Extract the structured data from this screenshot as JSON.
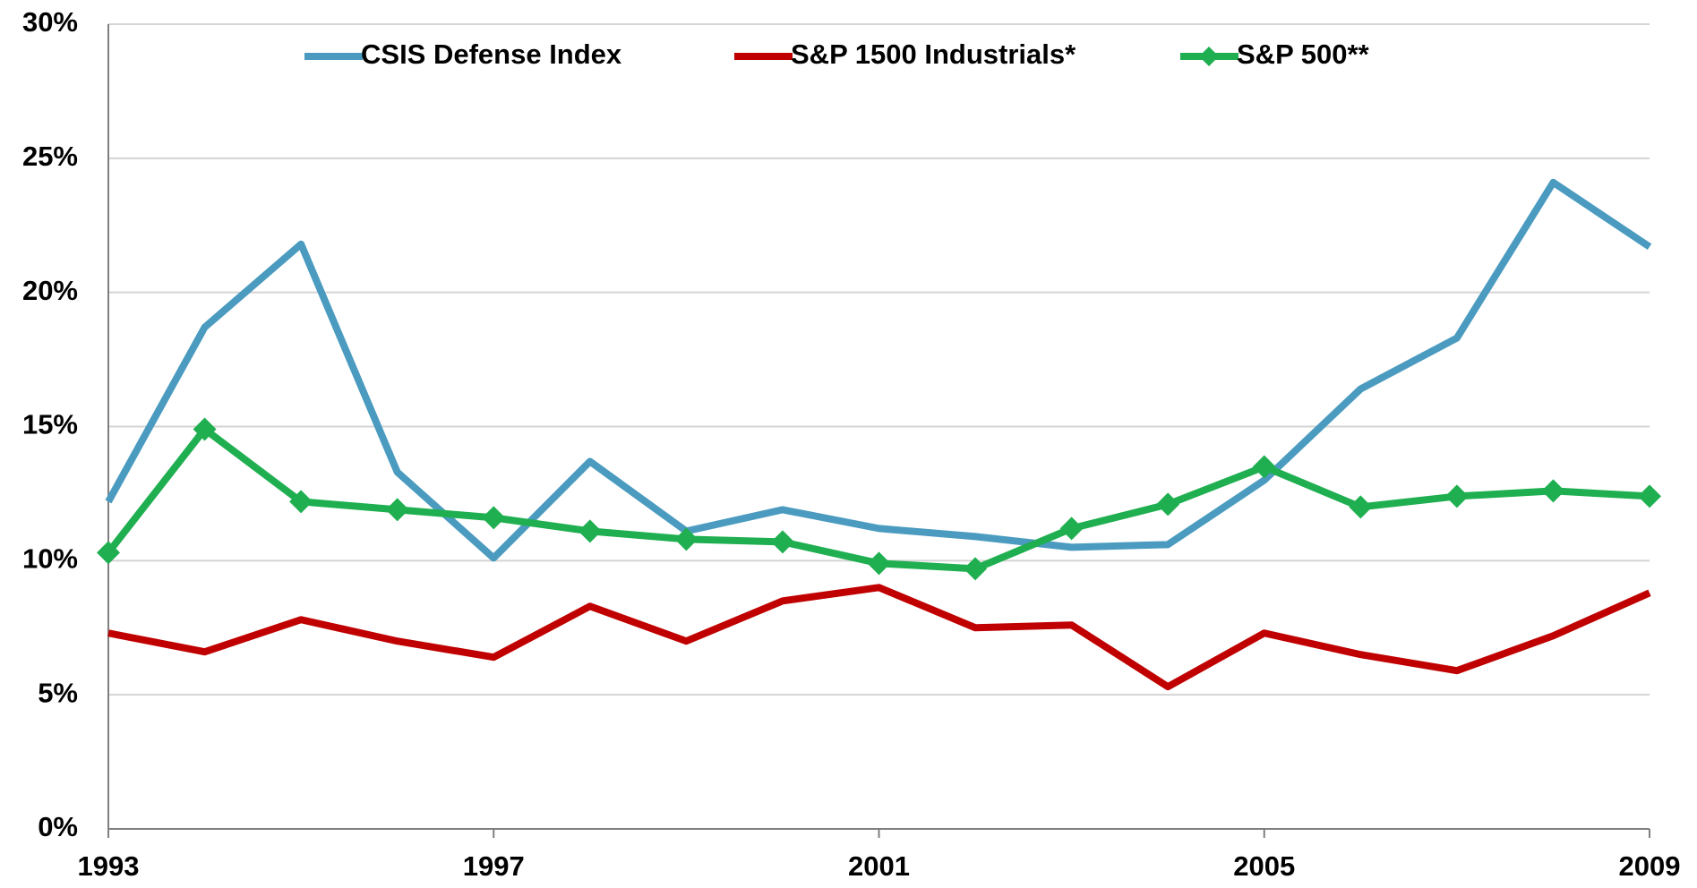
{
  "chart_data": {
    "type": "line",
    "x": [
      1993,
      1994,
      1995,
      1996,
      1997,
      1998,
      1999,
      2000,
      2001,
      2002,
      2003,
      2004,
      2005,
      2006,
      2007,
      2008,
      2009
    ],
    "series": [
      {
        "name": "CSIS Defense Index",
        "color": "#4a9bbf",
        "marker": null,
        "values": [
          12.2,
          18.7,
          21.8,
          13.3,
          10.1,
          13.7,
          11.1,
          11.9,
          11.2,
          10.9,
          10.5,
          10.6,
          13.0,
          16.4,
          18.3,
          24.1,
          21.7
        ]
      },
      {
        "name": "S&P 1500 Industrials*",
        "color": "#c00000",
        "marker": null,
        "values": [
          7.3,
          6.6,
          7.8,
          7.0,
          6.4,
          8.3,
          7.0,
          8.5,
          9.0,
          7.5,
          7.6,
          5.3,
          7.3,
          6.5,
          5.9,
          7.2,
          8.8
        ]
      },
      {
        "name": "S&P 500**",
        "color": "#1faf50",
        "marker": "diamond",
        "values": [
          10.3,
          14.9,
          12.2,
          11.9,
          11.6,
          11.1,
          10.8,
          10.7,
          9.9,
          9.7,
          11.2,
          12.1,
          13.5,
          12.0,
          12.4,
          12.6,
          12.4
        ]
      }
    ],
    "xlim": [
      1993,
      2009
    ],
    "xticks": [
      1993,
      1997,
      2001,
      2005,
      2009
    ],
    "ylim": [
      0,
      30
    ],
    "yticks": [
      {
        "value": 0,
        "label": "0%"
      },
      {
        "value": 5,
        "label": "5%"
      },
      {
        "value": 10,
        "label": "10%"
      },
      {
        "value": 15,
        "label": "15%"
      },
      {
        "value": 20,
        "label": "20%"
      },
      {
        "value": 25,
        "label": "25%"
      },
      {
        "value": 30,
        "label": "30%"
      }
    ],
    "grid": true,
    "legend": "top"
  }
}
